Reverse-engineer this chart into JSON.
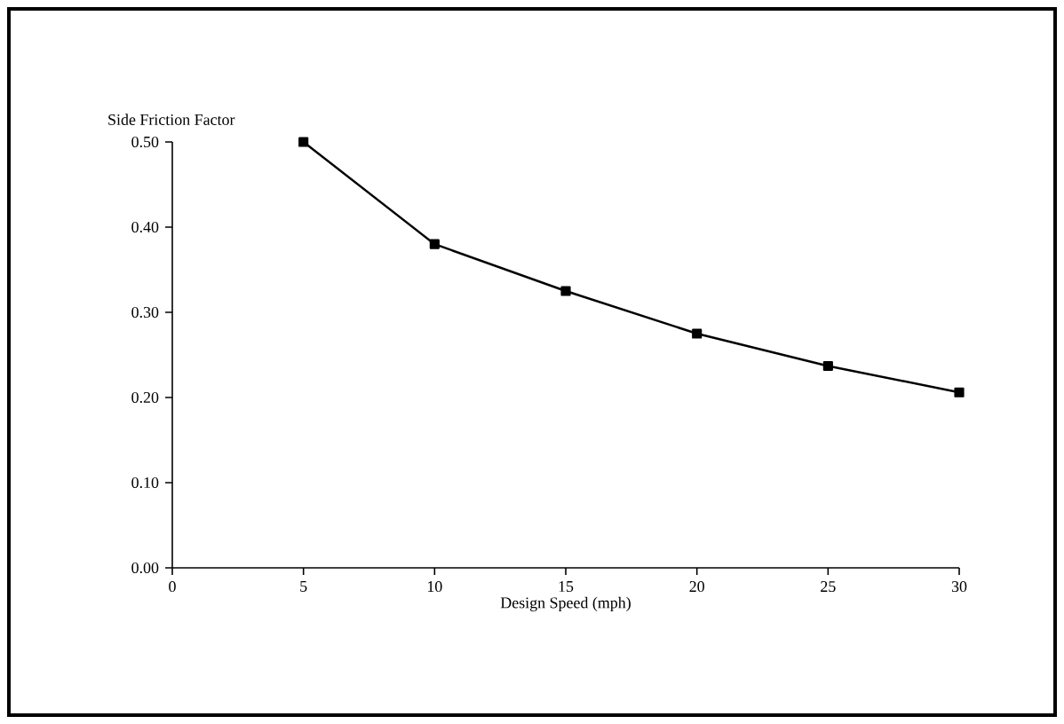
{
  "chart_data": {
    "type": "line",
    "xlabel": "Design Speed (mph)",
    "ylabel": "Side Friction Factor",
    "x": [
      5,
      10,
      15,
      20,
      25,
      30
    ],
    "series": [
      {
        "color": "#000000",
        "values": [
          0.5,
          0.38,
          0.325,
          0.275,
          0.237,
          0.206
        ]
      }
    ],
    "xlim": [
      0,
      30
    ],
    "xticks": [
      0,
      5,
      10,
      15,
      20,
      25,
      30
    ],
    "ylim": [
      0,
      0.5
    ],
    "yticks": [
      {
        "value": 0,
        "label": "0.00"
      },
      {
        "value": 0.1,
        "label": "0.10"
      },
      {
        "value": 0.2,
        "label": "0.20"
      },
      {
        "value": 0.3,
        "label": "0.30"
      },
      {
        "value": 0.4,
        "label": "0.40"
      },
      {
        "value": 0.5,
        "label": "0.50"
      }
    ],
    "marker": "square",
    "line_style": "solid"
  }
}
